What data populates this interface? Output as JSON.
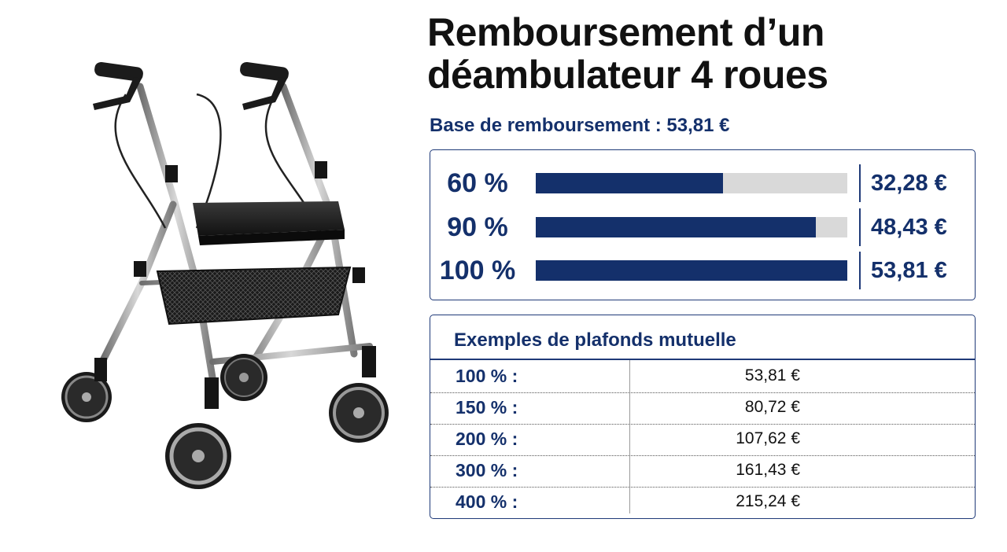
{
  "title": {
    "line1": "Remboursement d’un",
    "line2": "déambulateur 4 roues"
  },
  "base_line": "Base de remboursement : 53,81 €",
  "colors": {
    "navy": "#14306b",
    "track": "#d9d9d9",
    "text": "#111111"
  },
  "rates": [
    {
      "label": "60 %",
      "fraction": 0.6,
      "value": "32,28 €"
    },
    {
      "label": "90 %",
      "fraction": 0.9,
      "value": "48,43 €"
    },
    {
      "label": "100 %",
      "fraction": 1.0,
      "value": "53,81 €"
    }
  ],
  "caps": {
    "title": "Exemples de plafonds mutuelle",
    "rows": [
      {
        "label": "100 % :",
        "value": "53,81 €"
      },
      {
        "label": "150 % :",
        "value": "80,72 €"
      },
      {
        "label": "200 % :",
        "value": "107,62 €"
      },
      {
        "label": "300 % :",
        "value": "161,43 €"
      },
      {
        "label": "400 % :",
        "value": "215,24 €"
      }
    ]
  },
  "image_subject": "four-wheel rollator walker with seat and basket"
}
